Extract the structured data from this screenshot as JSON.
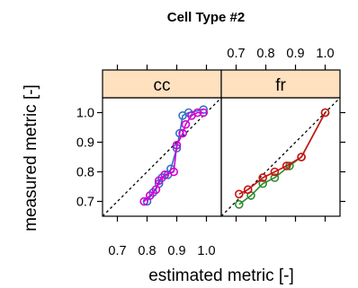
{
  "chart_data": {
    "type": "line",
    "title": "Cell Type #2",
    "xlabel": "estimated metric [-]",
    "ylabel": "measured metric [-]",
    "xlim": [
      0.65,
      1.05
    ],
    "ylim": [
      0.65,
      1.05
    ],
    "x_ticks": [
      0.7,
      0.8,
      0.9,
      1.0
    ],
    "y_ticks": [
      0.7,
      0.8,
      0.9,
      1.0
    ],
    "x_tick_labels": [
      "0.7",
      "0.8",
      "0.9",
      "1.0"
    ],
    "y_tick_labels": [
      "0.7",
      "0.8",
      "0.9",
      "1.0"
    ],
    "reference_line": "y = x",
    "panels": [
      {
        "label": "cc",
        "series": [
          {
            "color": "#2e74c4",
            "points": [
              [
                0.8,
                0.7
              ],
              [
                0.82,
                0.73
              ],
              [
                0.84,
                0.76
              ],
              [
                0.85,
                0.78
              ],
              [
                0.87,
                0.79
              ],
              [
                0.88,
                0.81
              ],
              [
                0.9,
                0.88
              ],
              [
                0.91,
                0.93
              ],
              [
                0.92,
                0.99
              ],
              [
                0.94,
                1.0
              ],
              [
                0.99,
                1.01
              ]
            ]
          },
          {
            "color": "#d400d4",
            "points": [
              [
                0.79,
                0.7
              ],
              [
                0.81,
                0.72
              ],
              [
                0.83,
                0.74
              ],
              [
                0.84,
                0.77
              ],
              [
                0.86,
                0.79
              ],
              [
                0.89,
                0.8
              ],
              [
                0.9,
                0.89
              ],
              [
                0.92,
                0.93
              ],
              [
                0.93,
                0.96
              ],
              [
                0.95,
                0.99
              ],
              [
                0.97,
                1.0
              ],
              [
                0.99,
                1.0
              ]
            ]
          }
        ]
      },
      {
        "label": "fr",
        "series": [
          {
            "color": "#2e8b2e",
            "points": [
              [
                0.71,
                0.69
              ],
              [
                0.75,
                0.72
              ],
              [
                0.79,
                0.76
              ],
              [
                0.83,
                0.78
              ],
              [
                0.88,
                0.82
              ],
              [
                0.92,
                0.85
              ],
              [
                1.0,
                1.0
              ]
            ]
          },
          {
            "color": "#cc1111",
            "points": [
              [
                0.71,
                0.725
              ],
              [
                0.74,
                0.74
              ],
              [
                0.79,
                0.78
              ],
              [
                0.83,
                0.8
              ],
              [
                0.87,
                0.82
              ],
              [
                0.92,
                0.85
              ],
              [
                1.0,
                1.0
              ]
            ]
          }
        ]
      }
    ]
  }
}
